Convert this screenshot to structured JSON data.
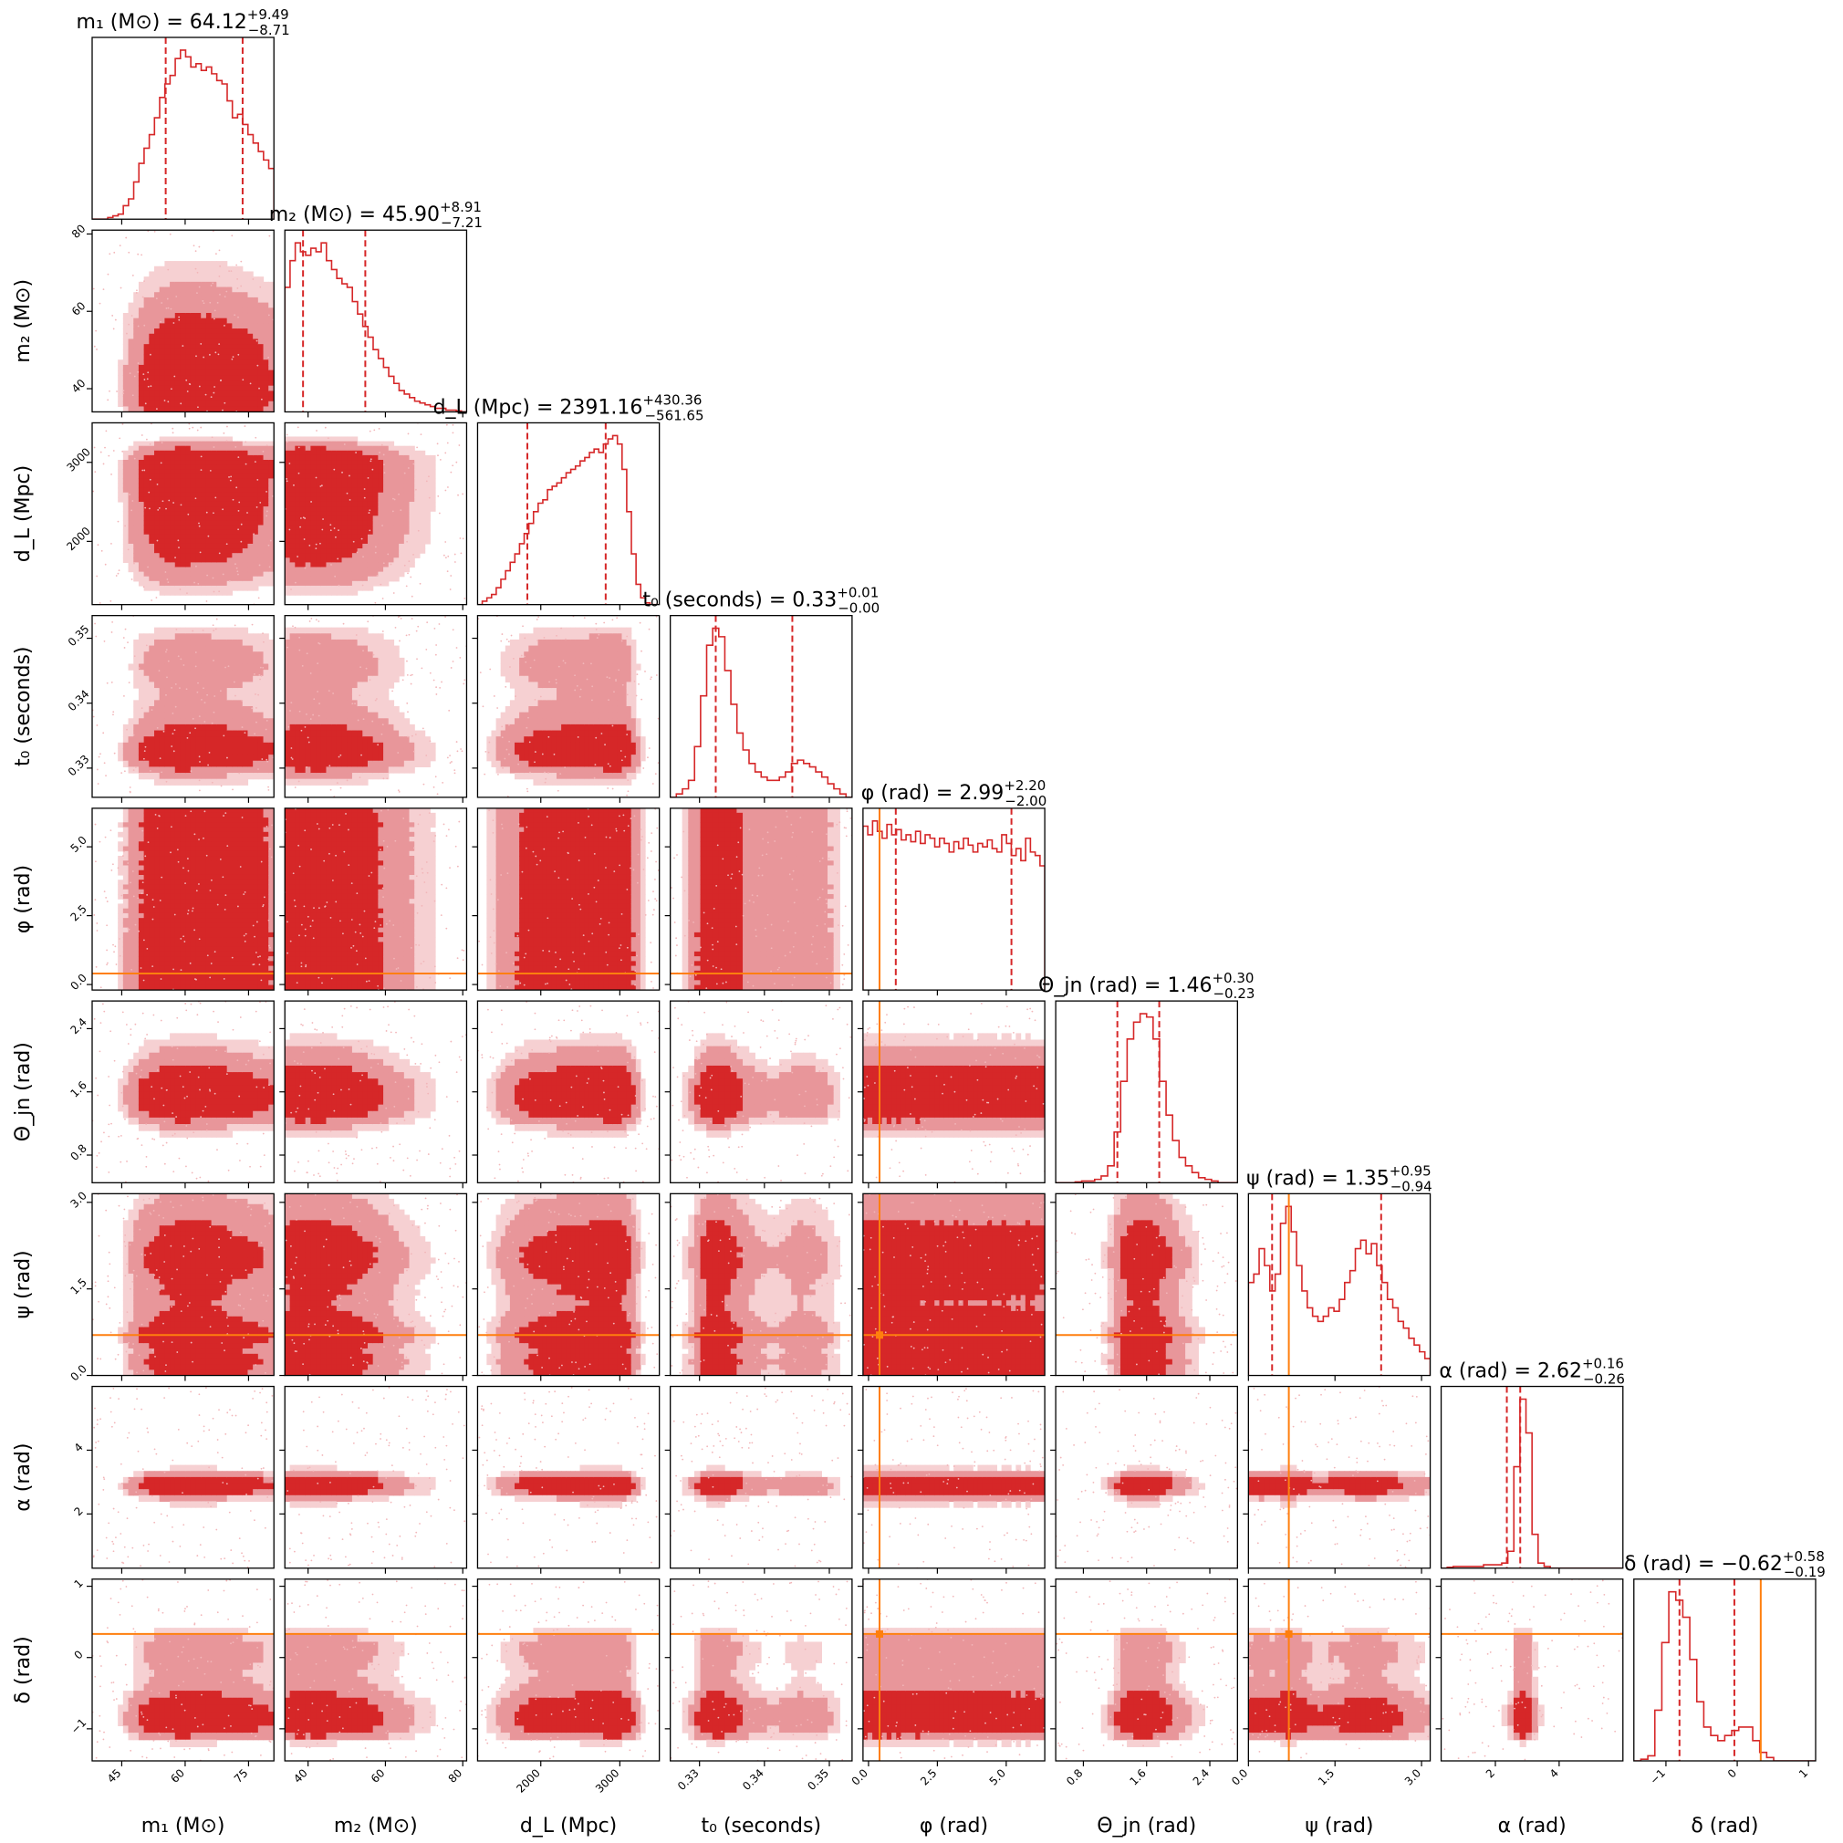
{
  "chart_data": {
    "type": "corner",
    "colors": {
      "posterior": "#d62728",
      "posterior_light": "#e8969a",
      "truth": "#ff7f0e"
    },
    "parameters": [
      {
        "id": "m1",
        "label": "m₁ (M⊙)",
        "title_prefix": "m₁ (M⊙) = ",
        "median": "64.12",
        "plus": "+9.49",
        "minus": "−8.71",
        "range": [
          38,
          81
        ],
        "ticks": [
          45,
          60,
          75
        ],
        "ticklabels": [
          "45",
          "60",
          "75"
        ],
        "q_low": 55.4,
        "q_high": 73.6,
        "truth": null,
        "hist": [
          0,
          0,
          0,
          0.01,
          0.02,
          0.03,
          0.08,
          0.12,
          0.22,
          0.33,
          0.42,
          0.5,
          0.6,
          0.72,
          0.8,
          0.85,
          0.95,
          1,
          0.96,
          0.9,
          0.92,
          0.88,
          0.9,
          0.86,
          0.82,
          0.8,
          0.7,
          0.6,
          0.62,
          0.56,
          0.5,
          0.45,
          0.4,
          0.35,
          0.3
        ]
      },
      {
        "id": "m2",
        "label": "m₂ (M⊙)",
        "title_prefix": "m₂ (M⊙) = ",
        "median": "45.90",
        "plus": "+8.91",
        "minus": "−7.21",
        "range": [
          34,
          81
        ],
        "ticks": [
          40,
          60,
          80
        ],
        "ticklabels": [
          "40",
          "60",
          "80"
        ],
        "q_low": 38.7,
        "q_high": 54.8,
        "truth": null,
        "hist": [
          0.7,
          0.85,
          0.95,
          0.9,
          0.88,
          0.92,
          0.9,
          0.95,
          0.85,
          0.8,
          0.75,
          0.72,
          0.7,
          0.62,
          0.55,
          0.48,
          0.42,
          0.35,
          0.3,
          0.25,
          0.2,
          0.16,
          0.12,
          0.1,
          0.08,
          0.06,
          0.05,
          0.04,
          0.03,
          0.02,
          0.02,
          0.01,
          0.01,
          0.005,
          0
        ]
      },
      {
        "id": "dL",
        "label": "d_L (Mpc)",
        "title_prefix": "d_L (Mpc) = ",
        "median": "2391.16",
        "plus": "+430.36",
        "minus": "−561.65",
        "range": [
          1200,
          3500
        ],
        "ticks": [
          2000,
          3000
        ],
        "ticklabels": [
          "2000",
          "3000"
        ],
        "q_low": 1830,
        "q_high": 2821,
        "truth": null,
        "hist": [
          0,
          0.02,
          0.04,
          0.06,
          0.1,
          0.15,
          0.2,
          0.25,
          0.3,
          0.36,
          0.42,
          0.48,
          0.55,
          0.6,
          0.62,
          0.68,
          0.7,
          0.72,
          0.75,
          0.78,
          0.8,
          0.82,
          0.85,
          0.87,
          0.9,
          0.92,
          0.9,
          0.95,
          0.98,
          1,
          0.95,
          0.8,
          0.55,
          0.3,
          0.12,
          0.04,
          0.01,
          0,
          0
        ]
      },
      {
        "id": "t0",
        "label": "t₀ (seconds)",
        "title_prefix": "t₀ (seconds) = ",
        "median": "0.33",
        "plus": "+0.01",
        "minus": "−0.00",
        "range": [
          0.3255,
          0.3535
        ],
        "ticks": [
          0.33,
          0.34,
          0.35
        ],
        "ticklabels": [
          "0.33",
          "0.34",
          "0.35"
        ],
        "q_low": 0.3325,
        "q_high": 0.3443,
        "truth": null,
        "hist": [
          0,
          0.02,
          0.05,
          0.1,
          0.3,
          0.6,
          0.9,
          1,
          0.95,
          0.75,
          0.55,
          0.38,
          0.28,
          0.2,
          0.15,
          0.12,
          0.1,
          0.1,
          0.12,
          0.15,
          0.2,
          0.22,
          0.2,
          0.18,
          0.15,
          0.12,
          0.08,
          0.05,
          0.02,
          0
        ]
      },
      {
        "id": "phi",
        "label": "φ (rad)",
        "title_prefix": "φ (rad) = ",
        "median": "2.99",
        "plus": "+2.20",
        "minus": "−2.00",
        "range": [
          -0.2,
          6.4
        ],
        "ticks": [
          0,
          2.5,
          5.0
        ],
        "ticklabels": [
          "0.0",
          "2.5",
          "5.0"
        ],
        "q_low": 0.99,
        "q_high": 5.19,
        "truth": 0.4,
        "hist": [
          0.95,
          0.9,
          0.98,
          0.92,
          0.88,
          0.96,
          0.9,
          0.93,
          0.87,
          0.9,
          0.86,
          0.92,
          0.85,
          0.9,
          0.88,
          0.83,
          0.88,
          0.85,
          0.8,
          0.86,
          0.82,
          0.88,
          0.84,
          0.8,
          0.85,
          0.83,
          0.87,
          0.82,
          0.8,
          0.9,
          0.85,
          0.78,
          0.82,
          0.75,
          0.88,
          0.8,
          0.78,
          0.72
        ]
      },
      {
        "id": "theta_jn",
        "label": "Θ_jn (rad)",
        "title_prefix": "Θ_jn (rad) = ",
        "median": "1.46",
        "plus": "+0.30",
        "minus": "−0.23",
        "range": [
          0.45,
          2.75
        ],
        "ticks": [
          0.8,
          1.6,
          2.4
        ],
        "ticklabels": [
          "0.8",
          "1.6",
          "2.4"
        ],
        "q_low": 1.23,
        "q_high": 1.76,
        "truth": null,
        "hist": [
          0,
          0,
          0,
          0.005,
          0.01,
          0.01,
          0.02,
          0.04,
          0.1,
          0.3,
          0.6,
          0.85,
          0.95,
          1,
          0.98,
          0.85,
          0.6,
          0.4,
          0.25,
          0.15,
          0.1,
          0.06,
          0.03,
          0.02,
          0.01,
          0,
          0,
          0
        ]
      },
      {
        "id": "psi",
        "label": "ψ (rad)",
        "title_prefix": "ψ (rad) = ",
        "median": "1.35",
        "plus": "+0.95",
        "minus": "−0.94",
        "range": [
          0,
          3.15
        ],
        "ticks": [
          0,
          1.5,
          3.0
        ],
        "ticklabels": [
          "0.0",
          "1.5",
          "3.0"
        ],
        "q_low": 0.41,
        "q_high": 2.3,
        "truth": 0.7,
        "hist": [
          0.55,
          0.6,
          0.75,
          0.65,
          0.5,
          0.6,
          0.9,
          1,
          0.85,
          0.65,
          0.5,
          0.4,
          0.35,
          0.32,
          0.35,
          0.4,
          0.38,
          0.45,
          0.55,
          0.62,
          0.75,
          0.8,
          0.72,
          0.78,
          0.65,
          0.55,
          0.45,
          0.4,
          0.32,
          0.28,
          0.22,
          0.18,
          0.14,
          0.1
        ]
      },
      {
        "id": "alpha",
        "label": "α (rad)",
        "title_prefix": "α (rad) = ",
        "median": "2.62",
        "plus": "+0.16",
        "minus": "−0.26",
        "range": [
          0.3,
          6.0
        ],
        "ticks": [
          2,
          4
        ],
        "ticklabels": [
          "2",
          "4"
        ],
        "q_low": 2.36,
        "q_high": 2.78,
        "truth": null,
        "hist": [
          0,
          0.005,
          0.01,
          0.01,
          0.01,
          0.01,
          0.01,
          0.02,
          0.02,
          0.02,
          0.03,
          0.1,
          0.6,
          1,
          0.8,
          0.2,
          0.03,
          0.01,
          0,
          0,
          0,
          0,
          0,
          0,
          0,
          0,
          0,
          0,
          0,
          0
        ]
      },
      {
        "id": "delta",
        "label": "δ (rad)",
        "title_prefix": "δ (rad) = ",
        "median": "−0.62",
        "plus": "+0.58",
        "minus": "−0.19",
        "range": [
          -1.45,
          1.1
        ],
        "ticks": [
          -1,
          0,
          1
        ],
        "ticklabels": [
          "−1",
          "0",
          "1"
        ],
        "q_low": -0.81,
        "q_high": -0.04,
        "truth": 0.33,
        "hist": [
          0,
          0.01,
          0.03,
          0.3,
          0.7,
          1,
          0.95,
          0.85,
          0.6,
          0.35,
          0.2,
          0.15,
          0.12,
          0.15,
          0.18,
          0.2,
          0.2,
          0.12,
          0.05,
          0.02,
          0,
          0,
          0,
          0,
          0,
          0
        ]
      }
    ]
  }
}
